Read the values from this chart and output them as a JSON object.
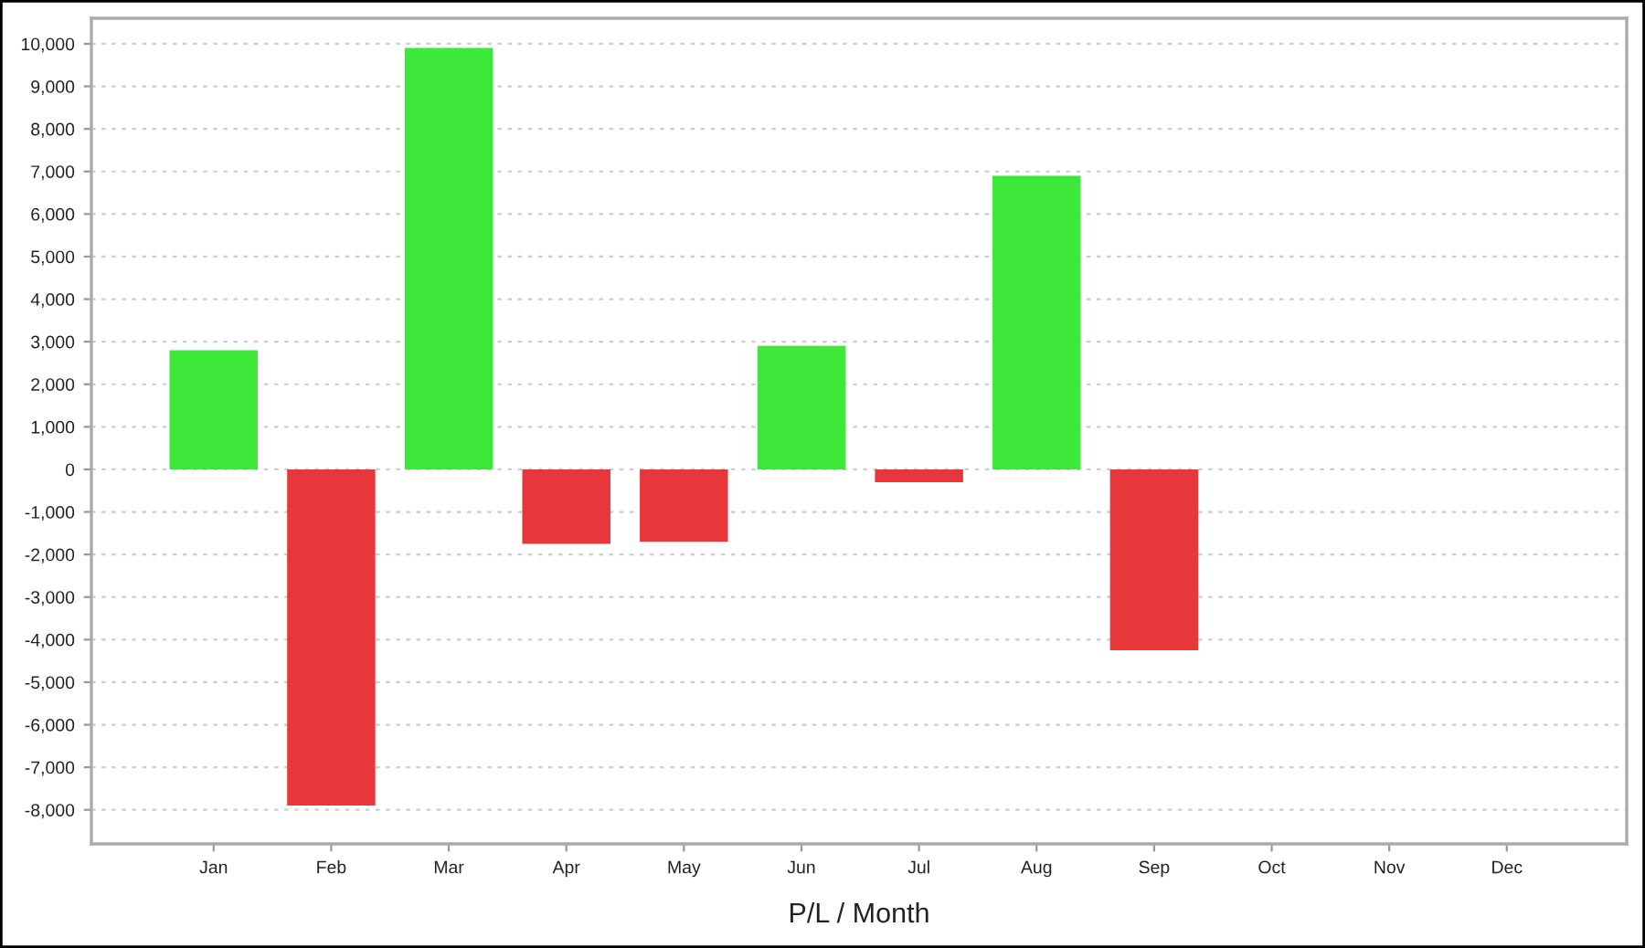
{
  "chart_data": {
    "type": "bar",
    "xlabel": "P/L / Month",
    "categories": [
      "Jan",
      "Feb",
      "Mar",
      "Apr",
      "May",
      "Jun",
      "Jul",
      "Aug",
      "Sep",
      "Oct",
      "Nov",
      "Dec"
    ],
    "values": [
      2800,
      -7900,
      9900,
      -1750,
      -1700,
      2900,
      -300,
      6900,
      -4250,
      null,
      null,
      null
    ],
    "colors": [
      "#3de83a",
      "#e8373a",
      "#3de83a",
      "#e8373a",
      "#e8373a",
      "#3de83a",
      "#e8373a",
      "#3de83a",
      "#e8373a",
      "#3de83a",
      "#3de83a",
      "#3de83a"
    ],
    "ylim": [
      -8800,
      10600
    ],
    "yticks": [
      {
        "value": -8000,
        "label": "-8,000"
      },
      {
        "value": -7000,
        "label": "-7,000"
      },
      {
        "value": -6000,
        "label": "-6,000"
      },
      {
        "value": -5000,
        "label": "-5,000"
      },
      {
        "value": -4000,
        "label": "-4,000"
      },
      {
        "value": -3000,
        "label": "-3,000"
      },
      {
        "value": -2000,
        "label": "-2,000"
      },
      {
        "value": -1000,
        "label": "-1,000"
      },
      0,
      {
        "value": 1000,
        "label": "1,000"
      },
      {
        "value": 2000,
        "label": "2,000"
      },
      {
        "value": 3000,
        "label": "3,000"
      },
      {
        "value": 4000,
        "label": "4,000"
      },
      {
        "value": 5000,
        "label": "5,000"
      },
      {
        "value": 6000,
        "label": "6,000"
      },
      {
        "value": 7000,
        "label": "7,000"
      },
      {
        "value": 8000,
        "label": "8,000"
      },
      {
        "value": 9000,
        "label": "9,000"
      },
      {
        "value": 10000,
        "label": "10,000"
      }
    ],
    "grid": "y"
  }
}
